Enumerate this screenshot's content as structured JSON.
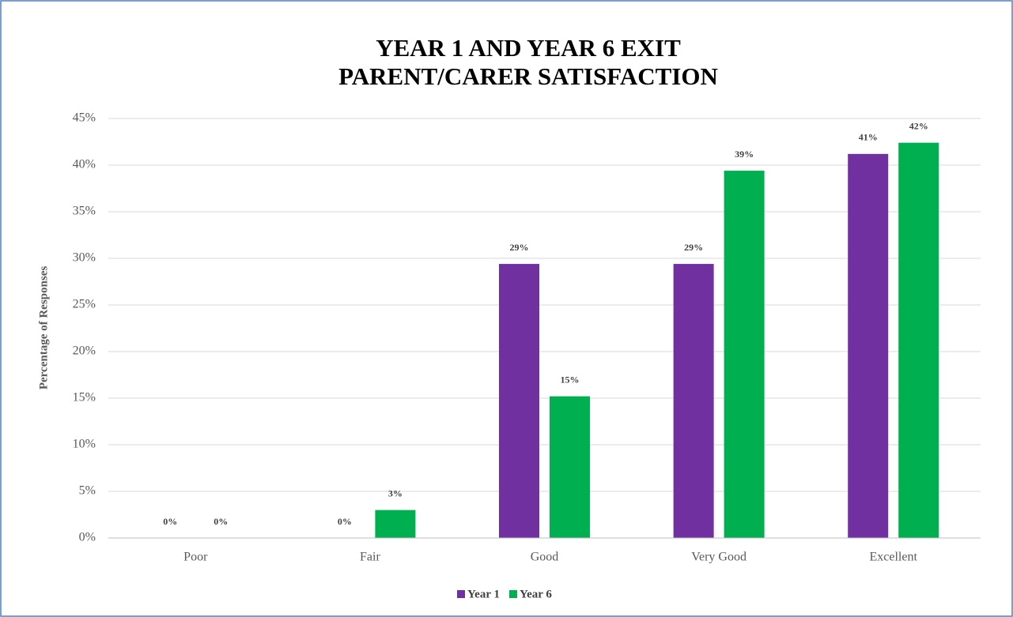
{
  "chart_data": {
    "type": "bar",
    "title": [
      "YEAR 1 AND YEAR 6 EXIT",
      "PARENT/CARER SATISFACTION"
    ],
    "y_label": "Percentage of Responses",
    "categories": [
      "Poor",
      "Fair",
      "Good",
      "Very Good",
      "Excellent"
    ],
    "series": [
      {
        "name": "Year 1",
        "color": "#7030a0",
        "values": [
          0,
          0,
          29.4,
          29.4,
          41.2
        ],
        "value_labels": [
          "0%",
          "0%",
          "29%",
          "29%",
          "41%"
        ]
      },
      {
        "name": "Year 6",
        "color": "#00b050",
        "values": [
          0,
          3.0,
          15.2,
          39.4,
          42.4
        ],
        "value_labels": [
          "0%",
          "3%",
          "15%",
          "39%",
          "42%"
        ]
      }
    ],
    "ylim": [
      0,
      45
    ],
    "yticks": [
      {
        "value": 0,
        "label": "0%"
      },
      {
        "value": 5,
        "label": "5%"
      },
      {
        "value": 10,
        "label": "10%"
      },
      {
        "value": 15,
        "label": "15%"
      },
      {
        "value": 20,
        "label": "20%"
      },
      {
        "value": 25,
        "label": "25%"
      },
      {
        "value": 30,
        "label": "30%"
      },
      {
        "value": 35,
        "label": "35%"
      },
      {
        "value": 40,
        "label": "40%"
      },
      {
        "value": 45,
        "label": "45%"
      }
    ],
    "grid": true,
    "legend": "bottom"
  }
}
